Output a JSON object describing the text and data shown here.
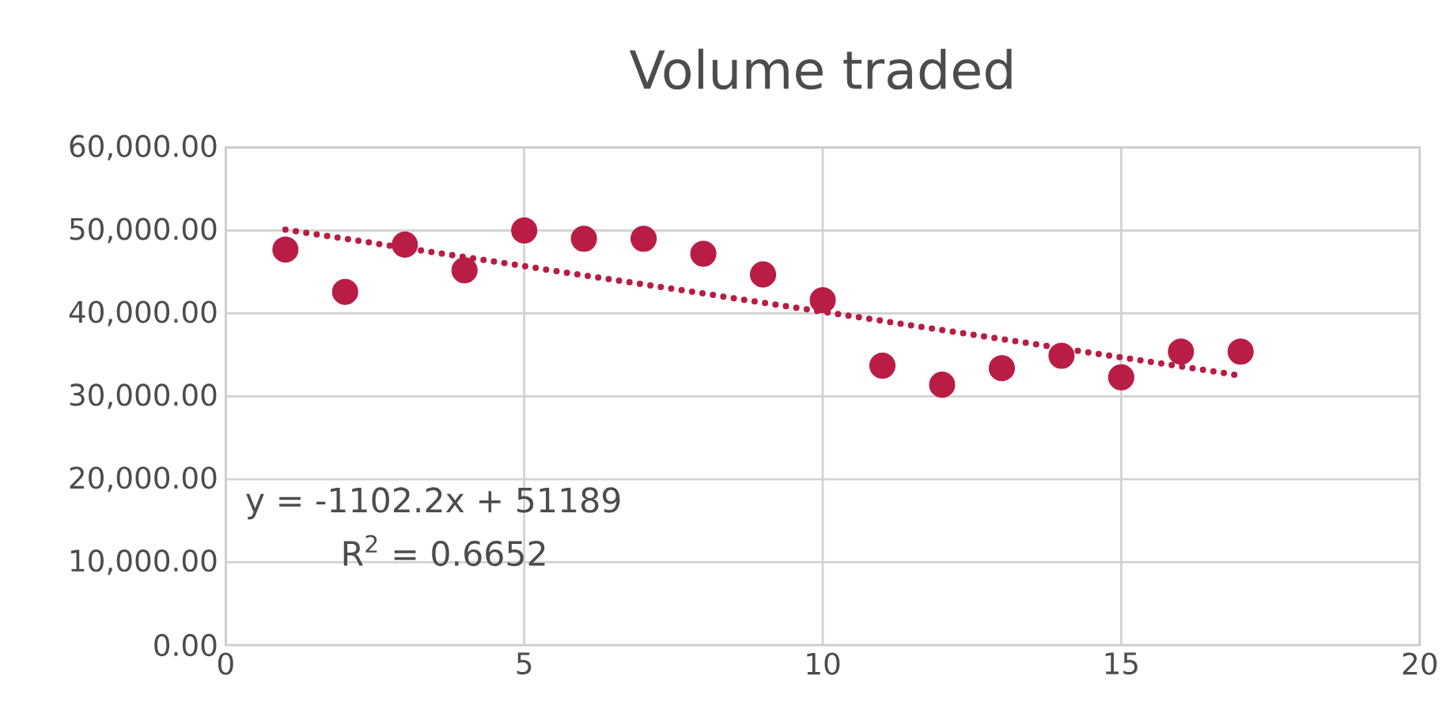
{
  "chart_data": {
    "type": "scatter",
    "title": "Volume traded",
    "xlim": [
      0,
      20
    ],
    "xticks": [
      0,
      5,
      10,
      15,
      20
    ],
    "ylim": [
      0,
      60000
    ],
    "yticks": [
      {
        "value": 0,
        "label": "0.00"
      },
      {
        "value": 10000,
        "label": "10,000.00"
      },
      {
        "value": 20000,
        "label": "20,000.00"
      },
      {
        "value": 30000,
        "label": "30,000.00"
      },
      {
        "value": 40000,
        "label": "40,000.00"
      },
      {
        "value": 50000,
        "label": "50,000.00"
      },
      {
        "value": 60000,
        "label": "60,000.00"
      }
    ],
    "grid": true,
    "series": [
      {
        "color": "#b91c45",
        "marker": "circle",
        "x": [
          1,
          2,
          3,
          4,
          5,
          6,
          7,
          8,
          9,
          10,
          11,
          12,
          13,
          14,
          15,
          16,
          17
        ],
        "values": [
          47700,
          42600,
          48300,
          45200,
          50000,
          49000,
          49000,
          47200,
          44700,
          41600,
          33700,
          31400,
          33400,
          34900,
          32300,
          35400,
          35400
        ]
      },
      {
        "type": "line",
        "color": "#b91c45",
        "line_style": "dotted",
        "marker": "none",
        "x": [
          1,
          17
        ],
        "values": [
          50100,
          32500
        ]
      }
    ],
    "annotations": [
      "y = -1102.2x + 51189",
      "R$^{2}$ = 0.6652"
    ]
  }
}
